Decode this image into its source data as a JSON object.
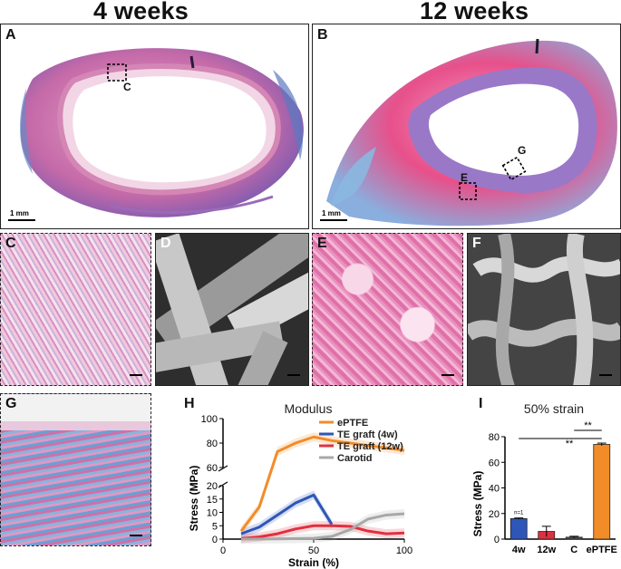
{
  "headers": {
    "left": "4 weeks",
    "right": "12 weeks"
  },
  "panels": {
    "A": {
      "label": "A",
      "inset_label": "C",
      "scale": "1 mm"
    },
    "B": {
      "label": "B",
      "inset_labels": [
        "E",
        "G"
      ],
      "scale": "1 mm"
    },
    "C": {
      "label": "C"
    },
    "D": {
      "label": "D"
    },
    "E": {
      "label": "E"
    },
    "F": {
      "label": "F"
    },
    "G": {
      "label": "G"
    },
    "H": {
      "label": "H"
    },
    "I": {
      "label": "I"
    }
  },
  "colors": {
    "ePTFE": "#f28c28",
    "tg4w": "#2e56b8",
    "tg12w": "#e03040",
    "carotid": "#a8a8a8"
  },
  "chart_data": [
    {
      "type": "line",
      "title": "Modulus",
      "xlabel": "Strain (%)",
      "ylabel": "Stress (MPa)",
      "xlim": [
        0,
        100
      ],
      "xticks": [
        "0",
        "50",
        "100"
      ],
      "ylim_lower": [
        0,
        20
      ],
      "yticks_lower": [
        "0",
        "5",
        "10",
        "15",
        "20"
      ],
      "ylim_upper": [
        60,
        100
      ],
      "yticks_upper": [
        "60",
        "80",
        "100"
      ],
      "broken_axis": true,
      "series": [
        {
          "name": "ePTFE",
          "color": "#f28c28",
          "x": [
            10,
            20,
            30,
            40,
            50,
            60,
            80,
            100
          ],
          "y": [
            3,
            12,
            73,
            80,
            85,
            82,
            78,
            74
          ]
        },
        {
          "name": "TE graft (4w)",
          "color": "#2e56b8",
          "x": [
            10,
            20,
            30,
            40,
            50,
            60
          ],
          "y": [
            2,
            4.5,
            9,
            13.5,
            16.5,
            5.5
          ]
        },
        {
          "name": "TE graft (12w)",
          "color": "#e03040",
          "x": [
            10,
            20,
            30,
            40,
            50,
            60,
            70,
            80,
            90,
            100
          ],
          "y": [
            0.2,
            0.8,
            2,
            3.8,
            5,
            5,
            4.8,
            3,
            2,
            2.3
          ]
        },
        {
          "name": "Carotid",
          "color": "#a8a8a8",
          "x": [
            10,
            30,
            50,
            60,
            70,
            80,
            90,
            100
          ],
          "y": [
            0,
            0.1,
            0.3,
            1,
            3.5,
            7.5,
            9,
            9.5
          ]
        }
      ]
    },
    {
      "type": "bar",
      "title": "50% strain",
      "ylabel": "Stress (MPa)",
      "categories": [
        "4w",
        "12w",
        "C",
        "ePTFE"
      ],
      "values": [
        16,
        6,
        1.5,
        74
      ],
      "errors": [
        0.5,
        4,
        0.7,
        1
      ],
      "colors": [
        "#2e56b8",
        "#e03040",
        "#555555",
        "#f28c28"
      ],
      "ylim": [
        0,
        80
      ],
      "yticks": [
        "0",
        "20",
        "40",
        "60",
        "80"
      ],
      "annotations": [
        "n=1",
        "**",
        "**"
      ]
    }
  ]
}
